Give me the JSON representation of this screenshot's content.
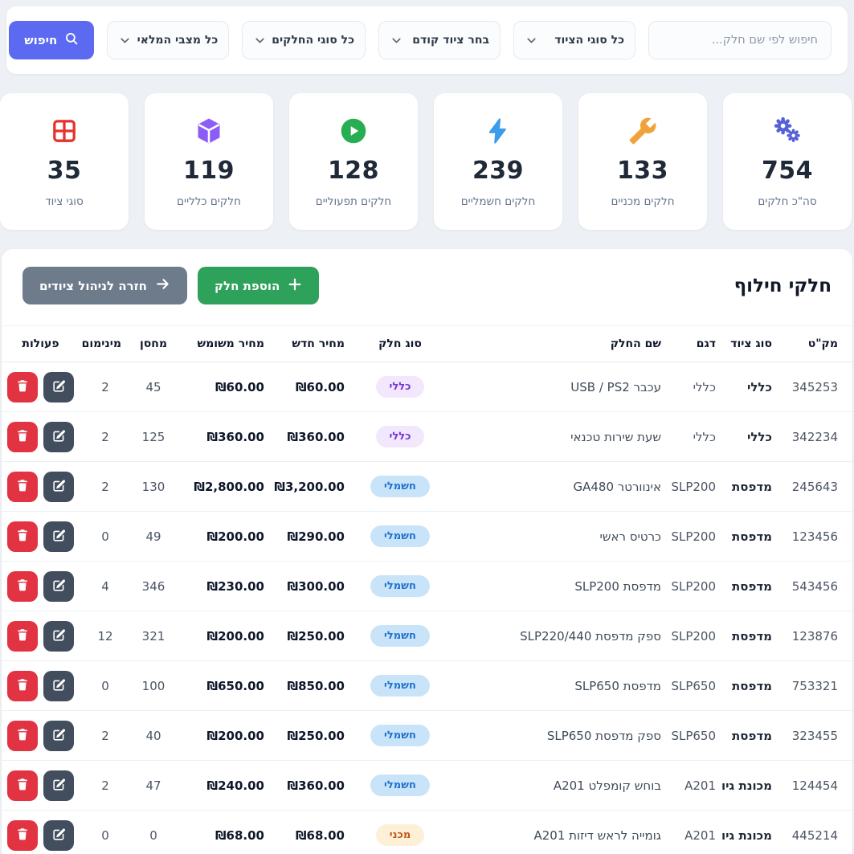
{
  "colors": {
    "search_button": "#5b6af1",
    "add_button": "#2ea15b",
    "back_button": "#6e7b8b",
    "edit_button": "#424e5e",
    "delete_button": "#e13342"
  },
  "search_bar": {
    "input_placeholder": "חיפוש לפי שם חלק...",
    "filters": [
      {
        "id": "equipment-types",
        "label": "כל סוגי הציוד"
      },
      {
        "id": "previous-equipment",
        "label": "בחר ציוד קודם"
      },
      {
        "id": "part-types",
        "label": "כל סוגי החלקים"
      },
      {
        "id": "stock-status",
        "label": "כל מצבי המלאי"
      }
    ],
    "search_button": "חיפוש"
  },
  "stats": [
    {
      "id": "total-parts",
      "icon": "gears-icon",
      "color": "#5560d9",
      "value": "754",
      "label": "סה\"כ חלקים"
    },
    {
      "id": "mechanical-parts",
      "icon": "wrench-icon",
      "color": "#f0a33c",
      "value": "133",
      "label": "חלקים מכניים"
    },
    {
      "id": "electrical-parts",
      "icon": "lightning-icon",
      "color": "#3b9ceb",
      "value": "239",
      "label": "חלקים חשמליים"
    },
    {
      "id": "operational-parts",
      "icon": "play-icon",
      "color": "#27ae53",
      "value": "128",
      "label": "חלקים תפעוליים"
    },
    {
      "id": "general-parts",
      "icon": "cube-icon",
      "color": "#8b5cf6",
      "value": "119",
      "label": "חלקים כלליים"
    },
    {
      "id": "equipment-types",
      "icon": "grid-icon",
      "color": "#e5322d",
      "value": "35",
      "label": "סוגי ציוד"
    }
  ],
  "parts_section": {
    "title": "חלקי חילוף",
    "add_button_label": "הוספת חלק",
    "back_button_label": "חזרה לניהול ציודים",
    "table": {
      "headers": [
        "מק\"ט",
        "סוג ציוד",
        "דגם",
        "שם החלק",
        "סוג חלק",
        "מחיר חדש",
        "מחיר משומש",
        "מחסן",
        "מינימום",
        "פעולות"
      ],
      "rows": [
        {
          "sku": "345253",
          "equipment_type": "כללי",
          "model": "כללי",
          "part_name": "עכבר USB / PS2",
          "part_type": "כללי",
          "part_type_key": "general",
          "new_price": "₪60.00",
          "used_price": "₪60.00",
          "stock": "45",
          "minimum": "2"
        },
        {
          "sku": "342234",
          "equipment_type": "כללי",
          "model": "כללי",
          "part_name": "שעת שירות טכנאי",
          "part_type": "כללי",
          "part_type_key": "general",
          "new_price": "₪360.00",
          "used_price": "₪360.00",
          "stock": "125",
          "minimum": "2"
        },
        {
          "sku": "245643",
          "equipment_type": "מדפסת",
          "model": "SLP200",
          "part_name": "אינוורטר GA480",
          "part_type": "חשמלי",
          "part_type_key": "electric",
          "new_price": "₪3,200.00",
          "used_price": "₪2,800.00",
          "stock": "130",
          "minimum": "2"
        },
        {
          "sku": "123456",
          "equipment_type": "מדפסת",
          "model": "SLP200",
          "part_name": "כרטיס ראשי",
          "part_type": "חשמלי",
          "part_type_key": "electric",
          "new_price": "₪290.00",
          "used_price": "₪200.00",
          "stock": "49",
          "minimum": "0"
        },
        {
          "sku": "543456",
          "equipment_type": "מדפסת",
          "model": "SLP200",
          "part_name": "מדפסת SLP200",
          "part_type": "חשמלי",
          "part_type_key": "electric",
          "new_price": "₪300.00",
          "used_price": "₪230.00",
          "stock": "346",
          "minimum": "4"
        },
        {
          "sku": "123876",
          "equipment_type": "מדפסת",
          "model": "SLP200",
          "part_name": "ספק מדפסת SLP220/440",
          "part_type": "חשמלי",
          "part_type_key": "electric",
          "new_price": "₪250.00",
          "used_price": "₪200.00",
          "stock": "321",
          "minimum": "12"
        },
        {
          "sku": "753321",
          "equipment_type": "מדפסת",
          "model": "SLP650",
          "part_name": "מדפסת SLP650",
          "part_type": "חשמלי",
          "part_type_key": "electric",
          "new_price": "₪850.00",
          "used_price": "₪650.00",
          "stock": "100",
          "minimum": "0"
        },
        {
          "sku": "323455",
          "equipment_type": "מדפסת",
          "model": "SLP650",
          "part_name": "ספק מדפסת SLP650",
          "part_type": "חשמלי",
          "part_type_key": "electric",
          "new_price": "₪250.00",
          "used_price": "₪200.00",
          "stock": "40",
          "minimum": "2"
        },
        {
          "sku": "124454",
          "equipment_type": "מכונת גיוון",
          "model": "A201",
          "part_name": "בוחש קומפלט A201",
          "part_type": "חשמלי",
          "part_type_key": "electric",
          "new_price": "₪360.00",
          "used_price": "₪240.00",
          "stock": "47",
          "minimum": "2"
        },
        {
          "sku": "445214",
          "equipment_type": "מכונת גיוון",
          "model": "A201",
          "part_name": "גומייה לראש דיזות A201",
          "part_type": "מכני",
          "part_type_key": "mechanic",
          "new_price": "₪68.00",
          "used_price": "₪68.00",
          "stock": "0",
          "minimum": "0"
        }
      ]
    }
  },
  "badge_styles": {
    "general": {
      "bg": "#f2e7fd",
      "text": "#7437d8"
    },
    "electric": {
      "bg": "#c9e4f8",
      "text": "#1e72cf"
    },
    "mechanic": {
      "bg": "#fdf0d6",
      "text": "#bf5a1d"
    }
  }
}
